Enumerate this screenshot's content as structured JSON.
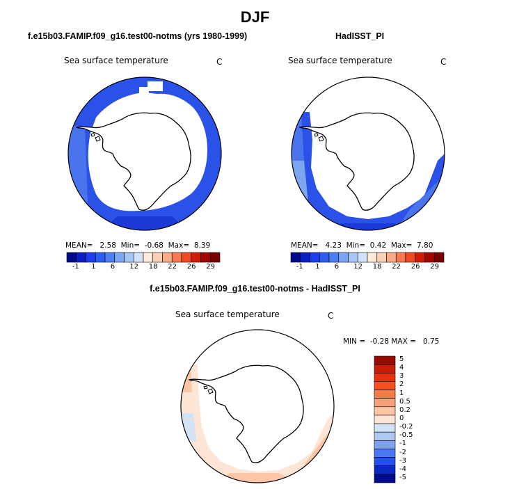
{
  "title": "DJF",
  "panels": [
    {
      "title": "f.e15b03.FAMIP.f09_g16.test00-notms (yrs 1980-1999)",
      "variable": "Sea surface temperature",
      "units": "C",
      "stats": {
        "mean_label": "MEAN=",
        "mean": "2.58",
        "min_label": "Min=",
        "min": "-0.68",
        "max_label": "Max=",
        "max": "8.39"
      }
    },
    {
      "title": "HadISST_PI",
      "variable": "Sea surface temperature",
      "units": "C",
      "stats": {
        "mean_label": "MEAN=",
        "mean": "4.23",
        "min_label": "Min=",
        "min": "0.42",
        "max_label": "Max=",
        "max": "7.80"
      }
    },
    {
      "title": "f.e15b03.FAMIP.f09_g16.test00-notms - HadISST_PI",
      "variable": "Sea surface temperature",
      "units": "C",
      "stats": {
        "min_label": "MIN =",
        "min": "-0.28",
        "max_label": "MAX =",
        "max": "0.75"
      }
    }
  ],
  "colorbar_main": {
    "ticks": [
      "-1",
      "1",
      "6",
      "12",
      "18",
      "22",
      "26",
      "29"
    ],
    "colors": [
      "#000a8c",
      "#0a1fc8",
      "#1e3cf0",
      "#2e5ef0",
      "#4a80f0",
      "#7aa6f2",
      "#a8c6f6",
      "#d2e2fa",
      "#ffeada",
      "#fcd0b4",
      "#f8aa88",
      "#f57a52",
      "#f04a22",
      "#d21c06",
      "#a40600",
      "#780000"
    ]
  },
  "colorbar_diff": {
    "ticks": [
      "5",
      "4",
      "3",
      "2",
      "1",
      "0.5",
      "0.2",
      "0",
      "-0.2",
      "-0.5",
      "-1",
      "-2",
      "-3",
      "-4",
      "-5"
    ],
    "colors": [
      "#960a00",
      "#c81e06",
      "#e63210",
      "#f55020",
      "#f57a48",
      "#f7a07a",
      "#fcc6a6",
      "#fde6d6",
      "#d4e2f6",
      "#b0c8f2",
      "#7ea2f0",
      "#4a78f0",
      "#2650ec",
      "#0c28c4",
      "#000a8c"
    ]
  },
  "chart_data": [
    {
      "type": "heatmap",
      "title": "f.e15b03.FAMIP.f09_g16.test00-notms (yrs 1980-1999)",
      "variable": "Sea surface temperature",
      "units": "C",
      "mean": 2.58,
      "min": -0.68,
      "max": 8.39,
      "levels": [
        -1,
        1,
        6,
        12,
        18,
        22,
        26,
        29
      ]
    },
    {
      "type": "heatmap",
      "title": "HadISST_PI",
      "variable": "Sea surface temperature",
      "units": "C",
      "mean": 4.23,
      "min": 0.42,
      "max": 7.8,
      "levels": [
        -1,
        1,
        6,
        12,
        18,
        22,
        26,
        29
      ]
    },
    {
      "type": "heatmap",
      "title": "f.e15b03.FAMIP.f09_g16.test00-notms - HadISST_PI",
      "variable": "Sea surface temperature",
      "units": "C",
      "min": -0.28,
      "max": 0.75,
      "levels": [
        -5,
        -4,
        -3,
        -2,
        -1,
        -0.5,
        -0.2,
        0,
        0.2,
        0.5,
        1,
        2,
        3,
        4,
        5
      ]
    }
  ]
}
